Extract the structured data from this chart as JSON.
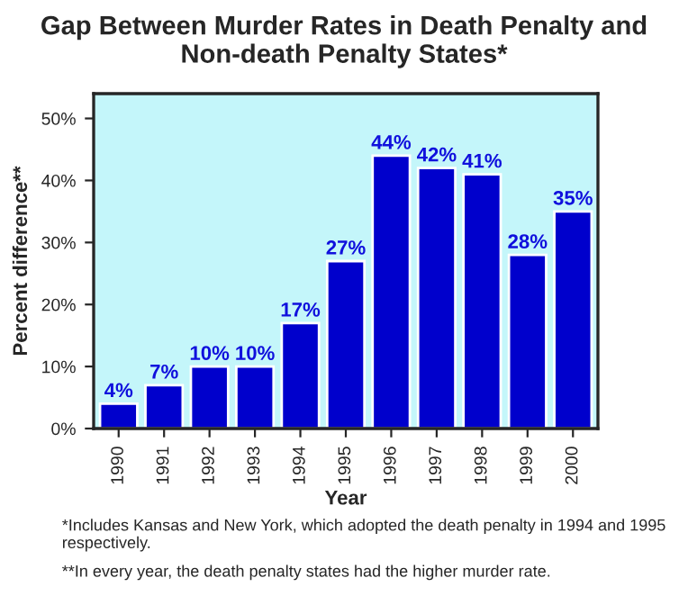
{
  "chart_data": {
    "type": "bar",
    "title": "Gap Between Murder Rates in Death Penalty and Non-death Penalty States*",
    "xlabel": "Year",
    "ylabel": "Percent difference**",
    "categories": [
      "1990",
      "1991",
      "1992",
      "1993",
      "1994",
      "1995",
      "1996",
      "1997",
      "1998",
      "1999",
      "2000"
    ],
    "values": [
      4,
      7,
      10,
      10,
      17,
      27,
      44,
      42,
      41,
      28,
      35
    ],
    "value_labels": [
      "4%",
      "7%",
      "10%",
      "10%",
      "17%",
      "27%",
      "44%",
      "42%",
      "41%",
      "28%",
      "35%"
    ],
    "color": "#0000cc",
    "ylim": [
      0,
      54
    ],
    "yticks": [
      {
        "value": 0,
        "label": "0%"
      },
      {
        "value": 10,
        "label": "10%"
      },
      {
        "value": 20,
        "label": "20%"
      },
      {
        "value": 30,
        "label": "30%"
      },
      {
        "value": 40,
        "label": "40%"
      },
      {
        "value": 50,
        "label": "50%"
      }
    ],
    "grid": false,
    "legend": false,
    "annotations": [
      "*Includes Kansas and New York, which adopted the death penalty in 1994 and 1995 respectively.",
      "**In every year, the death penalty states had the higher murder rate."
    ]
  }
}
